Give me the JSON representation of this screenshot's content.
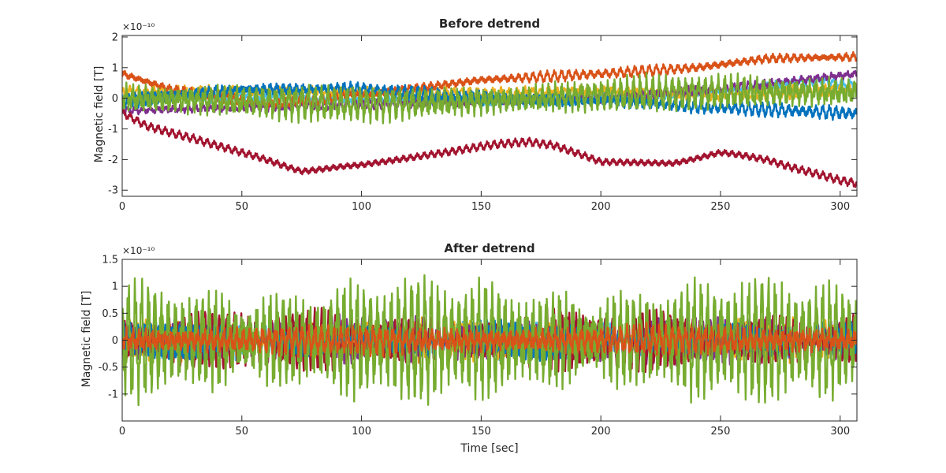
{
  "chart_data": [
    {
      "type": "line",
      "title": "Before detrend",
      "xlabel": "",
      "ylabel": "Magnetic field [T]",
      "y_exponent": "×10⁻¹⁰",
      "xlim": [
        0,
        307
      ],
      "ylim": [
        -3.2,
        2.05
      ],
      "xticks": [
        0,
        50,
        100,
        150,
        200,
        250,
        300
      ],
      "yticks": [
        -3,
        -2,
        -1,
        0,
        1,
        2
      ],
      "grid": false,
      "legend": "none",
      "series": [
        {
          "color": "#4DBEEE",
          "amplitude": 0.22,
          "envelope": {
            "t": [
              0,
              50,
              100,
              150,
              200,
              250,
              290,
              307
            ],
            "y": [
              0.0,
              0.05,
              -0.05,
              -0.1,
              0.0,
              0.2,
              0.6,
              0.4
            ]
          }
        },
        {
          "color": "#EDB120",
          "amplitude": 0.25,
          "envelope": {
            "t": [
              0,
              50,
              100,
              150,
              200,
              250,
              307
            ],
            "y": [
              0.2,
              0.25,
              0.2,
              0.15,
              0.25,
              0.1,
              0.3
            ]
          }
        },
        {
          "color": "#7E2F8E",
          "amplitude": 0.2,
          "envelope": {
            "t": [
              0,
              50,
              100,
              150,
              200,
              250,
              307
            ],
            "y": [
              -0.4,
              -0.3,
              -0.2,
              -0.1,
              0.0,
              0.3,
              0.8
            ]
          }
        },
        {
          "color": "#D95319",
          "amplitude": 0.22,
          "envelope": {
            "t": [
              0,
              20,
              60,
              100,
              150,
              200,
              240,
              270,
              307
            ],
            "y": [
              0.8,
              0.3,
              -0.2,
              0.1,
              0.6,
              0.8,
              1.0,
              1.3,
              1.35
            ]
          }
        },
        {
          "color": "#A2142F",
          "amplitude": 0.18,
          "envelope": {
            "t": [
              0,
              10,
              30,
              50,
              75,
              100,
              130,
              170,
              180,
              200,
              230,
              250,
              270,
              300,
              307
            ],
            "y": [
              -0.5,
              -0.9,
              -1.3,
              -1.8,
              -2.35,
              -2.2,
              -1.8,
              -1.4,
              -1.5,
              -2.1,
              -2.1,
              -1.8,
              -2.0,
              -2.7,
              -2.8
            ]
          }
        },
        {
          "color": "#0072BD",
          "amplitude": 0.28,
          "envelope": {
            "t": [
              0,
              50,
              100,
              150,
              200,
              250,
              307
            ],
            "y": [
              -0.1,
              0.3,
              0.3,
              0.0,
              -0.1,
              -0.3,
              -0.5
            ]
          }
        },
        {
          "color": "#77AC30",
          "amplitude": 0.7,
          "envelope": {
            "t": [
              0,
              50,
              100,
              150,
              200,
              250,
              307
            ],
            "y": [
              0.0,
              -0.1,
              -0.2,
              -0.1,
              0.1,
              0.2,
              0.2
            ]
          }
        }
      ]
    },
    {
      "type": "line",
      "title": "After detrend",
      "xlabel": "Time [sec]",
      "ylabel": "Magnetic field [T]",
      "y_exponent": "×10⁻¹⁰",
      "xlim": [
        0,
        307
      ],
      "ylim": [
        -1.5,
        1.5
      ],
      "xticks": [
        0,
        50,
        100,
        150,
        200,
        250,
        300
      ],
      "yticks": [
        -1,
        -0.5,
        0,
        0.5,
        1,
        1.5
      ],
      "grid": false,
      "legend": "none",
      "series": [
        {
          "color": "#4DBEEE",
          "amplitude": 0.4,
          "envelope": {
            "t": [
              0,
              307
            ],
            "y": [
              0,
              0
            ]
          }
        },
        {
          "color": "#EDB120",
          "amplitude": 0.45,
          "envelope": {
            "t": [
              0,
              307
            ],
            "y": [
              0,
              0
            ]
          }
        },
        {
          "color": "#7E2F8E",
          "amplitude": 0.5,
          "envelope": {
            "t": [
              0,
              307
            ],
            "y": [
              0,
              0
            ]
          }
        },
        {
          "color": "#A2142F",
          "amplitude": 0.65,
          "envelope": {
            "t": [
              0,
              307
            ],
            "y": [
              0,
              0
            ]
          }
        },
        {
          "color": "#0072BD",
          "amplitude": 0.4,
          "envelope": {
            "t": [
              0,
              307
            ],
            "y": [
              0,
              0
            ]
          }
        },
        {
          "color": "#77AC30",
          "amplitude": 1.3,
          "envelope": {
            "t": [
              0,
              307
            ],
            "y": [
              0,
              0
            ]
          }
        },
        {
          "color": "#D95319",
          "amplitude": 0.33,
          "envelope": {
            "t": [
              0,
              307
            ],
            "y": [
              0,
              0
            ]
          }
        }
      ]
    }
  ]
}
